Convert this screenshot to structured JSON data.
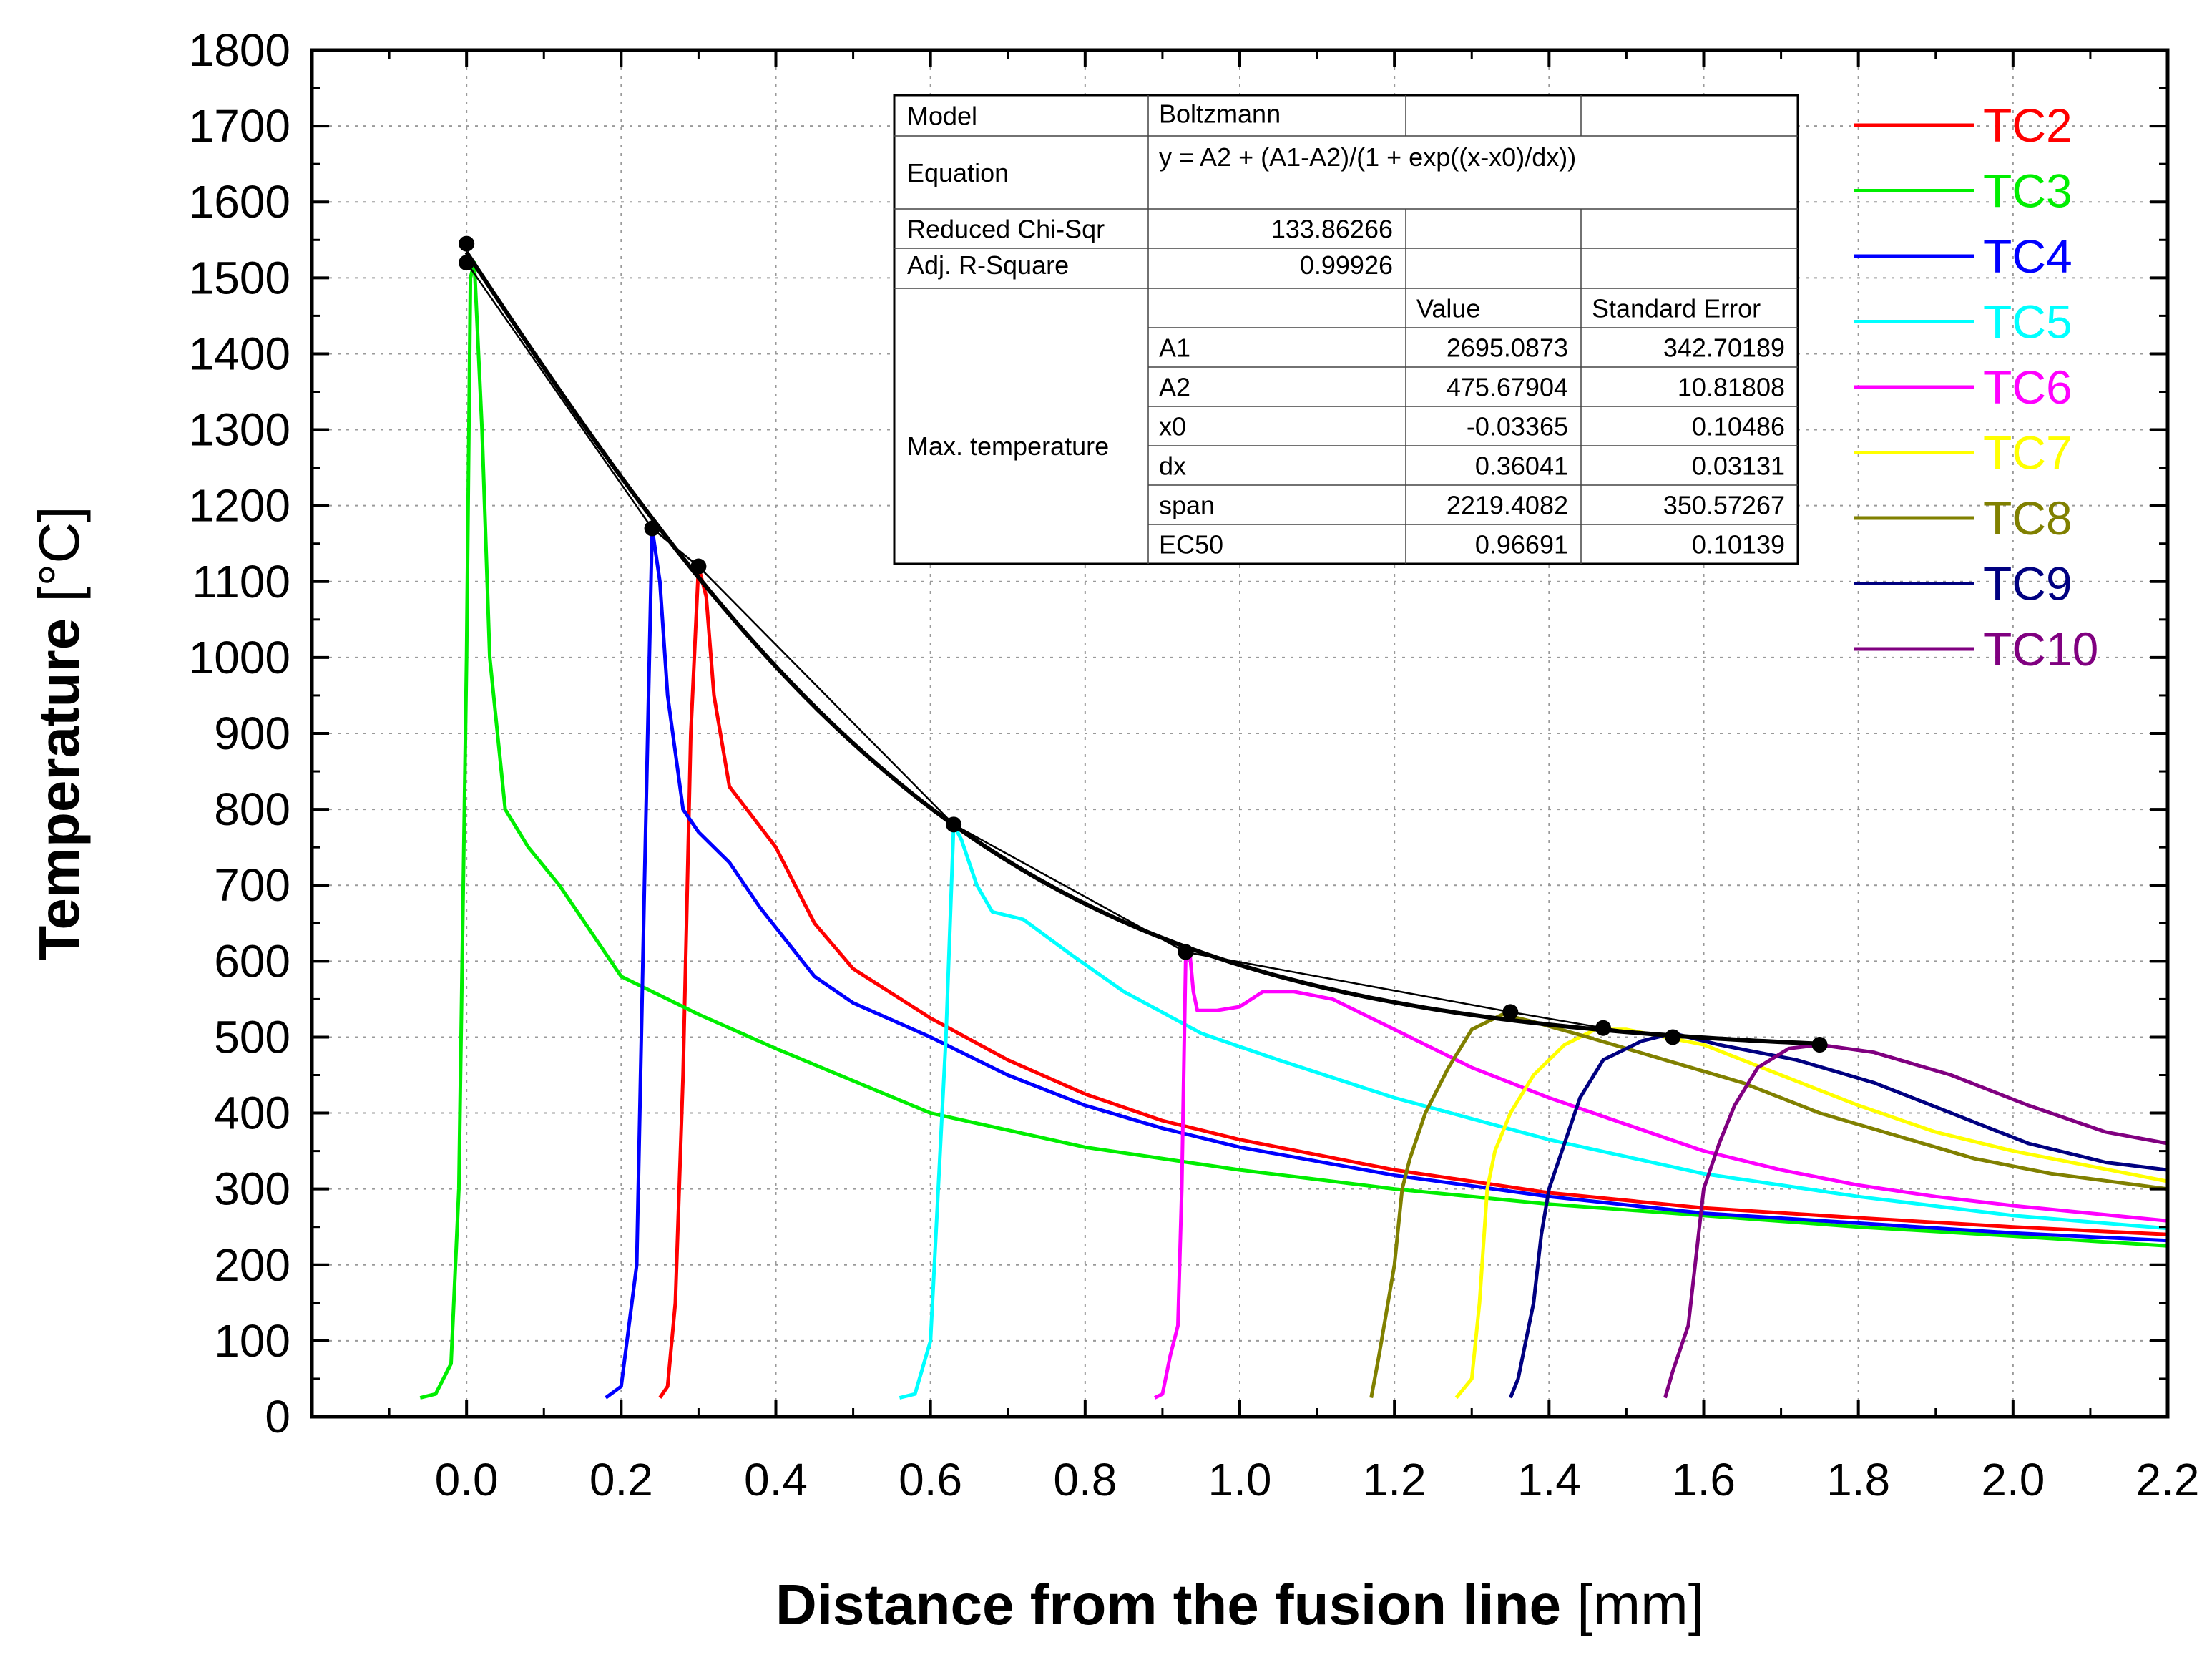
{
  "chart_data": {
    "type": "line",
    "xlabel_bold": "Distance from the fusion line",
    "xlabel_unit": " [mm]",
    "ylabel_bold": "Temperature",
    "ylabel_unit": " [°C]",
    "xlim": [
      -0.2,
      2.2
    ],
    "ylim": [
      0,
      1800
    ],
    "x_ticks": [
      0.0,
      0.2,
      0.4,
      0.6,
      0.8,
      1.0,
      1.2,
      1.4,
      1.6,
      1.8,
      2.0,
      2.2
    ],
    "x_tick_labels": [
      "0.0",
      "0.2",
      "0.4",
      "0.6",
      "0.8",
      "1.0",
      "1.2",
      "1.4",
      "1.6",
      "1.8",
      "2.0",
      "2.2"
    ],
    "y_ticks": [
      0,
      100,
      200,
      300,
      400,
      500,
      600,
      700,
      800,
      900,
      1000,
      1100,
      1200,
      1300,
      1400,
      1500,
      1600,
      1700,
      1800
    ],
    "y_tick_labels": [
      "0",
      "100",
      "200",
      "300",
      "400",
      "500",
      "600",
      "700",
      "800",
      "900",
      "1000",
      "1100",
      "1200",
      "1300",
      "1400",
      "1500",
      "1600",
      "1700",
      "1800"
    ],
    "grid": true,
    "legend_position": "outside-right",
    "series": [
      {
        "name": "TC2",
        "color": "#ff0000",
        "points": [
          [
            0.25,
            25
          ],
          [
            0.26,
            40
          ],
          [
            0.27,
            150
          ],
          [
            0.28,
            450
          ],
          [
            0.29,
            900
          ],
          [
            0.3,
            1120
          ],
          [
            0.31,
            1080
          ],
          [
            0.32,
            950
          ],
          [
            0.34,
            830
          ],
          [
            0.37,
            790
          ],
          [
            0.4,
            750
          ],
          [
            0.45,
            650
          ],
          [
            0.5,
            590
          ],
          [
            0.6,
            525
          ],
          [
            0.7,
            470
          ],
          [
            0.8,
            425
          ],
          [
            0.9,
            390
          ],
          [
            1.0,
            365
          ],
          [
            1.2,
            325
          ],
          [
            1.4,
            295
          ],
          [
            1.6,
            275
          ],
          [
            1.8,
            262
          ],
          [
            2.0,
            250
          ],
          [
            2.2,
            240
          ]
        ]
      },
      {
        "name": "TC3",
        "color": "#00ee00",
        "points": [
          [
            -0.06,
            25
          ],
          [
            -0.04,
            30
          ],
          [
            -0.02,
            70
          ],
          [
            -0.01,
            300
          ],
          [
            0.0,
            1000
          ],
          [
            0.005,
            1500
          ],
          [
            0.01,
            1520
          ],
          [
            0.02,
            1300
          ],
          [
            0.03,
            1000
          ],
          [
            0.05,
            800
          ],
          [
            0.08,
            750
          ],
          [
            0.12,
            700
          ],
          [
            0.2,
            580
          ],
          [
            0.3,
            530
          ],
          [
            0.4,
            485
          ],
          [
            0.6,
            400
          ],
          [
            0.8,
            355
          ],
          [
            1.0,
            325
          ],
          [
            1.2,
            300
          ],
          [
            1.4,
            280
          ],
          [
            1.6,
            265
          ],
          [
            1.8,
            250
          ],
          [
            2.0,
            238
          ],
          [
            2.2,
            225
          ]
        ]
      },
      {
        "name": "TC4",
        "color": "#0000ff",
        "points": [
          [
            0.18,
            25
          ],
          [
            0.2,
            40
          ],
          [
            0.22,
            200
          ],
          [
            0.23,
            700
          ],
          [
            0.24,
            1170
          ],
          [
            0.25,
            1100
          ],
          [
            0.26,
            950
          ],
          [
            0.28,
            800
          ],
          [
            0.3,
            770
          ],
          [
            0.34,
            730
          ],
          [
            0.38,
            670
          ],
          [
            0.45,
            580
          ],
          [
            0.5,
            545
          ],
          [
            0.6,
            500
          ],
          [
            0.7,
            450
          ],
          [
            0.8,
            410
          ],
          [
            0.9,
            380
          ],
          [
            1.0,
            355
          ],
          [
            1.2,
            318
          ],
          [
            1.4,
            290
          ],
          [
            1.6,
            268
          ],
          [
            1.8,
            255
          ],
          [
            2.0,
            242
          ],
          [
            2.2,
            232
          ]
        ]
      },
      {
        "name": "TC5",
        "color": "#00ffff",
        "points": [
          [
            0.56,
            25
          ],
          [
            0.58,
            30
          ],
          [
            0.6,
            100
          ],
          [
            0.62,
            500
          ],
          [
            0.63,
            780
          ],
          [
            0.64,
            760
          ],
          [
            0.66,
            700
          ],
          [
            0.68,
            665
          ],
          [
            0.72,
            655
          ],
          [
            0.78,
            610
          ],
          [
            0.85,
            560
          ],
          [
            0.95,
            505
          ],
          [
            1.05,
            470
          ],
          [
            1.2,
            420
          ],
          [
            1.4,
            365
          ],
          [
            1.6,
            320
          ],
          [
            1.8,
            290
          ],
          [
            2.0,
            265
          ],
          [
            2.2,
            248
          ]
        ]
      },
      {
        "name": "TC6",
        "color": "#ff00ff",
        "points": [
          [
            0.89,
            25
          ],
          [
            0.9,
            30
          ],
          [
            0.91,
            80
          ],
          [
            0.92,
            120
          ],
          [
            0.925,
            300
          ],
          [
            0.93,
            600
          ],
          [
            0.935,
            615
          ],
          [
            0.94,
            560
          ],
          [
            0.945,
            535
          ],
          [
            0.97,
            535
          ],
          [
            1.0,
            540
          ],
          [
            1.03,
            560
          ],
          [
            1.07,
            560
          ],
          [
            1.12,
            550
          ],
          [
            1.2,
            510
          ],
          [
            1.3,
            460
          ],
          [
            1.4,
            420
          ],
          [
            1.5,
            385
          ],
          [
            1.6,
            350
          ],
          [
            1.7,
            325
          ],
          [
            1.8,
            305
          ],
          [
            1.9,
            290
          ],
          [
            2.0,
            278
          ],
          [
            2.1,
            268
          ],
          [
            2.2,
            258
          ]
        ]
      },
      {
        "name": "TC7",
        "color": "#ffff00",
        "points": [
          [
            1.28,
            25
          ],
          [
            1.3,
            50
          ],
          [
            1.31,
            150
          ],
          [
            1.32,
            300
          ],
          [
            1.33,
            350
          ],
          [
            1.35,
            400
          ],
          [
            1.38,
            450
          ],
          [
            1.42,
            490
          ],
          [
            1.46,
            510
          ],
          [
            1.5,
            510
          ],
          [
            1.6,
            490
          ],
          [
            1.7,
            450
          ],
          [
            1.8,
            410
          ],
          [
            1.9,
            375
          ],
          [
            2.0,
            350
          ],
          [
            2.1,
            330
          ],
          [
            2.2,
            310
          ]
        ]
      },
      {
        "name": "TC8",
        "color": "#808000",
        "points": [
          [
            1.17,
            25
          ],
          [
            1.18,
            80
          ],
          [
            1.2,
            200
          ],
          [
            1.21,
            300
          ],
          [
            1.22,
            340
          ],
          [
            1.24,
            400
          ],
          [
            1.27,
            460
          ],
          [
            1.3,
            510
          ],
          [
            1.34,
            530
          ],
          [
            1.38,
            520
          ],
          [
            1.45,
            500
          ],
          [
            1.55,
            470
          ],
          [
            1.65,
            440
          ],
          [
            1.75,
            400
          ],
          [
            1.85,
            370
          ],
          [
            1.95,
            340
          ],
          [
            2.05,
            320
          ],
          [
            2.2,
            300
          ]
        ]
      },
      {
        "name": "TC9",
        "color": "#000080",
        "points": [
          [
            1.35,
            25
          ],
          [
            1.36,
            50
          ],
          [
            1.38,
            150
          ],
          [
            1.39,
            240
          ],
          [
            1.4,
            300
          ],
          [
            1.42,
            360
          ],
          [
            1.44,
            420
          ],
          [
            1.47,
            470
          ],
          [
            1.52,
            495
          ],
          [
            1.56,
            505
          ],
          [
            1.62,
            490
          ],
          [
            1.72,
            470
          ],
          [
            1.82,
            440
          ],
          [
            1.92,
            400
          ],
          [
            2.02,
            360
          ],
          [
            2.12,
            335
          ],
          [
            2.2,
            325
          ]
        ]
      },
      {
        "name": "TC10",
        "color": "#800080",
        "points": [
          [
            1.55,
            25
          ],
          [
            1.56,
            60
          ],
          [
            1.58,
            120
          ],
          [
            1.59,
            210
          ],
          [
            1.6,
            300
          ],
          [
            1.62,
            360
          ],
          [
            1.64,
            410
          ],
          [
            1.67,
            460
          ],
          [
            1.71,
            485
          ],
          [
            1.75,
            490
          ],
          [
            1.82,
            480
          ],
          [
            1.92,
            450
          ],
          [
            2.02,
            410
          ],
          [
            2.12,
            375
          ],
          [
            2.2,
            360
          ]
        ]
      }
    ],
    "max_points": {
      "name": "Max. temperature",
      "color": "#000000",
      "points": [
        [
          0.0,
          1545
        ],
        [
          0.0,
          1520
        ],
        [
          0.24,
          1170
        ],
        [
          0.3,
          1120
        ],
        [
          0.63,
          780
        ],
        [
          0.93,
          612
        ],
        [
          1.35,
          533
        ],
        [
          1.47,
          512
        ],
        [
          1.56,
          500
        ],
        [
          1.75,
          490
        ]
      ]
    },
    "fit_curve": {
      "name": "Boltzmann fit",
      "color": "#000000",
      "A1": 2695.0873,
      "A2": 475.67904,
      "x0": -0.03365,
      "dx": 0.36041
    },
    "fit_table": {
      "model_label": "Model",
      "model_value": "Boltzmann",
      "equation_label": "Equation",
      "equation_value": "y = A2 + (A1-A2)/(1 + exp((x-x0)/dx))",
      "chisq_label": "Reduced Chi-Sqr",
      "chisq_value": "133.86266",
      "r2_label": "Adj. R-Square",
      "r2_value": "0.99926",
      "value_header": "Value",
      "error_header": "Standard Error",
      "group_label": "Max. temperature",
      "rows": [
        {
          "param": "A1",
          "value": "2695.0873",
          "error": "342.70189"
        },
        {
          "param": "A2",
          "value": "475.67904",
          "error": "10.81808"
        },
        {
          "param": "x0",
          "value": "-0.03365",
          "error": "0.10486"
        },
        {
          "param": "dx",
          "value": "0.36041",
          "error": "0.03131"
        },
        {
          "param": "span",
          "value": "2219.4082",
          "error": "350.57267"
        },
        {
          "param": "EC50",
          "value": "0.96691",
          "error": "0.10139"
        }
      ]
    }
  }
}
